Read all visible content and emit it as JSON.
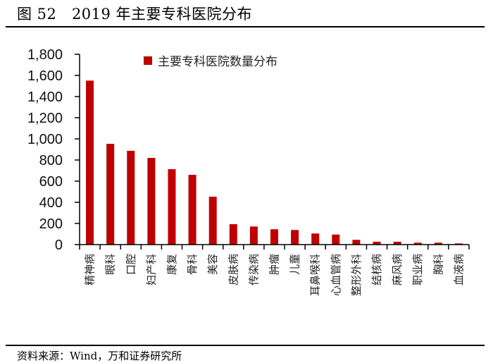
{
  "header": {
    "figure_label": "图 52",
    "title": "2019 年主要专科医院分布"
  },
  "footer": {
    "source": "资料来源：Wind，万和证券研究所"
  },
  "colors": {
    "bar": "#C00000",
    "axis": "#000000"
  },
  "chart_data": {
    "type": "bar",
    "title": "2019 年主要专科医院分布",
    "xlabel": "",
    "ylabel": "",
    "ylim": [
      0,
      1800
    ],
    "yticks": [
      0,
      200,
      400,
      600,
      800,
      1000,
      1200,
      1400,
      1600,
      1800
    ],
    "ytick_labels": [
      "0",
      "200",
      "400",
      "600",
      "800",
      "1,000",
      "1,200",
      "1,400",
      "1,600",
      "1,800"
    ],
    "grid": false,
    "legend": {
      "position": "top-center-inside",
      "entries": [
        "主要专科医院数量分布"
      ]
    },
    "categories": [
      "精神病",
      "眼科",
      "口腔",
      "妇产科",
      "康复",
      "骨科",
      "美容",
      "皮肤病",
      "传染病",
      "肿瘤",
      "儿童",
      "耳鼻喉科",
      "心血管病",
      "整形外科",
      "结核病",
      "麻风病",
      "职业病",
      "胸科",
      "血液病"
    ],
    "series": [
      {
        "name": "主要专科医院数量分布",
        "color": "#C00000",
        "values": [
          1551,
          953,
          887,
          820,
          713,
          660,
          453,
          193,
          171,
          145,
          138,
          105,
          95,
          45,
          27,
          27,
          18,
          18,
          11
        ]
      }
    ]
  }
}
